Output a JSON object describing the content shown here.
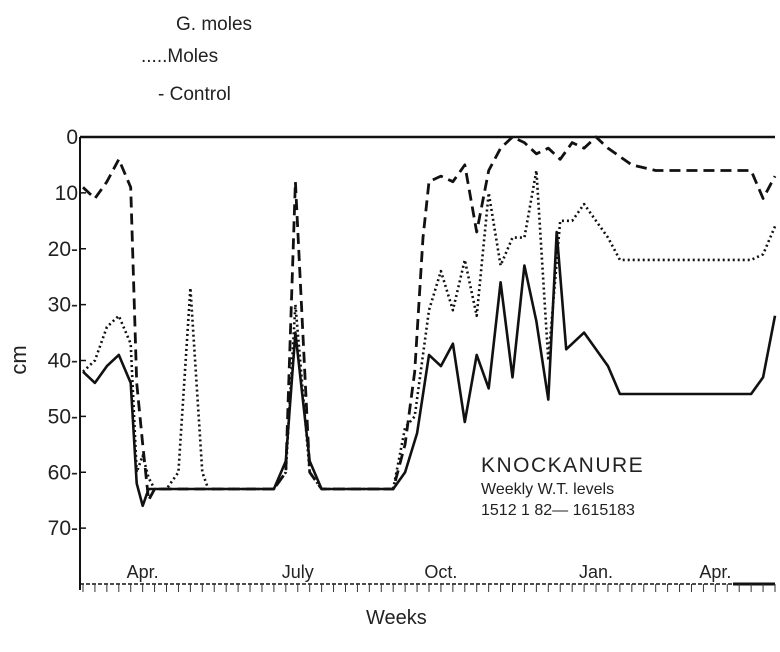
{
  "legend": {
    "items": [
      "G. moles",
      ".....Moles",
      "- Control"
    ]
  },
  "title": {
    "main": "KNOCKANURE",
    "line1": "Weekly W.T. levels",
    "line2": "1512 1 82— 1615183"
  },
  "chart_data": {
    "type": "line",
    "title": "KNOCKANURE",
    "xlabel": "Weeks",
    "ylabel": "cm",
    "y_axis_inverted": true,
    "ylim": [
      0,
      80
    ],
    "yticks": [
      "0",
      "10",
      "20-",
      "30-",
      "40-",
      "50-",
      "60-",
      "70-"
    ],
    "ytick_values": [
      0,
      10,
      20,
      30,
      40,
      50,
      60,
      70
    ],
    "xlim": [
      0,
      58
    ],
    "xtick_labels": [
      {
        "label": "Apr.",
        "x": 5
      },
      {
        "label": "July",
        "x": 18
      },
      {
        "label": "Oct.",
        "x": 30
      },
      {
        "label": "Jan.",
        "x": 43
      },
      {
        "label": "Apr.",
        "x": 53
      }
    ],
    "series": [
      {
        "name": "G. moles",
        "style": "dashed",
        "points": [
          [
            0,
            9
          ],
          [
            1,
            11
          ],
          [
            2,
            8
          ],
          [
            3,
            4
          ],
          [
            4,
            9
          ],
          [
            4.5,
            44
          ],
          [
            5,
            55
          ],
          [
            5.5,
            65
          ],
          [
            6,
            63
          ],
          [
            8,
            63
          ],
          [
            10,
            63
          ],
          [
            12,
            63
          ],
          [
            14,
            63
          ],
          [
            16,
            63
          ],
          [
            17,
            60
          ],
          [
            17.8,
            8
          ],
          [
            19,
            60
          ],
          [
            20,
            63
          ],
          [
            22,
            63
          ],
          [
            24,
            63
          ],
          [
            26,
            63
          ],
          [
            27,
            55
          ],
          [
            27.8,
            42
          ],
          [
            28.5,
            18
          ],
          [
            29,
            8
          ],
          [
            30,
            7
          ],
          [
            31,
            8
          ],
          [
            32,
            5
          ],
          [
            33,
            17
          ],
          [
            34,
            6
          ],
          [
            35,
            2
          ],
          [
            36,
            0
          ],
          [
            37,
            1
          ],
          [
            38,
            3
          ],
          [
            39,
            2
          ],
          [
            40,
            4
          ],
          [
            41,
            1
          ],
          [
            42,
            2
          ],
          [
            43,
            0
          ],
          [
            44,
            2
          ],
          [
            46,
            5
          ],
          [
            48,
            6
          ],
          [
            50,
            6
          ],
          [
            52,
            6
          ],
          [
            54,
            6
          ],
          [
            56,
            6
          ],
          [
            57,
            11
          ],
          [
            58,
            7
          ]
        ]
      },
      {
        "name": "Moles",
        "style": "dotted",
        "points": [
          [
            0,
            42
          ],
          [
            1,
            40
          ],
          [
            2,
            34
          ],
          [
            3,
            32
          ],
          [
            4,
            37
          ],
          [
            4.5,
            60
          ],
          [
            5,
            57
          ],
          [
            5.5,
            61
          ],
          [
            6,
            63
          ],
          [
            7,
            63
          ],
          [
            8,
            60
          ],
          [
            9,
            27
          ],
          [
            10,
            60
          ],
          [
            10.5,
            63
          ],
          [
            12,
            63
          ],
          [
            14,
            63
          ],
          [
            16,
            63
          ],
          [
            17,
            60
          ],
          [
            17.8,
            30
          ],
          [
            19,
            60
          ],
          [
            20,
            63
          ],
          [
            22,
            63
          ],
          [
            24,
            63
          ],
          [
            26,
            63
          ],
          [
            27,
            52
          ],
          [
            27.8,
            50
          ],
          [
            29,
            31
          ],
          [
            30,
            24
          ],
          [
            31,
            31
          ],
          [
            32,
            22
          ],
          [
            33,
            32
          ],
          [
            34,
            10
          ],
          [
            35,
            23
          ],
          [
            36,
            18
          ],
          [
            37,
            18
          ],
          [
            38,
            6
          ],
          [
            39,
            40
          ],
          [
            40,
            15
          ],
          [
            41,
            15
          ],
          [
            42,
            12
          ],
          [
            44,
            18
          ],
          [
            45,
            22
          ],
          [
            48,
            22
          ],
          [
            50,
            22
          ],
          [
            52,
            22
          ],
          [
            54,
            22
          ],
          [
            56,
            22
          ],
          [
            57,
            21
          ],
          [
            58,
            16
          ]
        ]
      },
      {
        "name": "Control",
        "style": "solid",
        "points": [
          [
            0,
            42
          ],
          [
            1,
            44
          ],
          [
            2,
            41
          ],
          [
            3,
            39
          ],
          [
            4,
            44
          ],
          [
            4.5,
            62
          ],
          [
            5,
            66
          ],
          [
            5.5,
            63
          ],
          [
            6,
            63
          ],
          [
            8,
            63
          ],
          [
            10,
            63
          ],
          [
            12,
            63
          ],
          [
            14,
            63
          ],
          [
            16,
            63
          ],
          [
            17,
            58
          ],
          [
            17.8,
            35
          ],
          [
            19,
            58
          ],
          [
            20,
            63
          ],
          [
            22,
            63
          ],
          [
            24,
            63
          ],
          [
            26,
            63
          ],
          [
            27,
            60
          ],
          [
            28,
            53
          ],
          [
            29,
            39
          ],
          [
            30,
            41
          ],
          [
            31,
            37
          ],
          [
            32,
            51
          ],
          [
            33,
            39
          ],
          [
            34,
            45
          ],
          [
            35,
            26
          ],
          [
            36,
            43
          ],
          [
            37,
            23
          ],
          [
            38,
            33
          ],
          [
            39,
            47
          ],
          [
            39.7,
            17
          ],
          [
            40.5,
            38
          ],
          [
            42,
            35
          ],
          [
            44,
            41
          ],
          [
            45,
            46
          ],
          [
            48,
            46
          ],
          [
            50,
            46
          ],
          [
            52,
            46
          ],
          [
            54,
            46
          ],
          [
            56,
            46
          ],
          [
            57,
            43
          ],
          [
            58,
            32
          ]
        ]
      }
    ]
  }
}
